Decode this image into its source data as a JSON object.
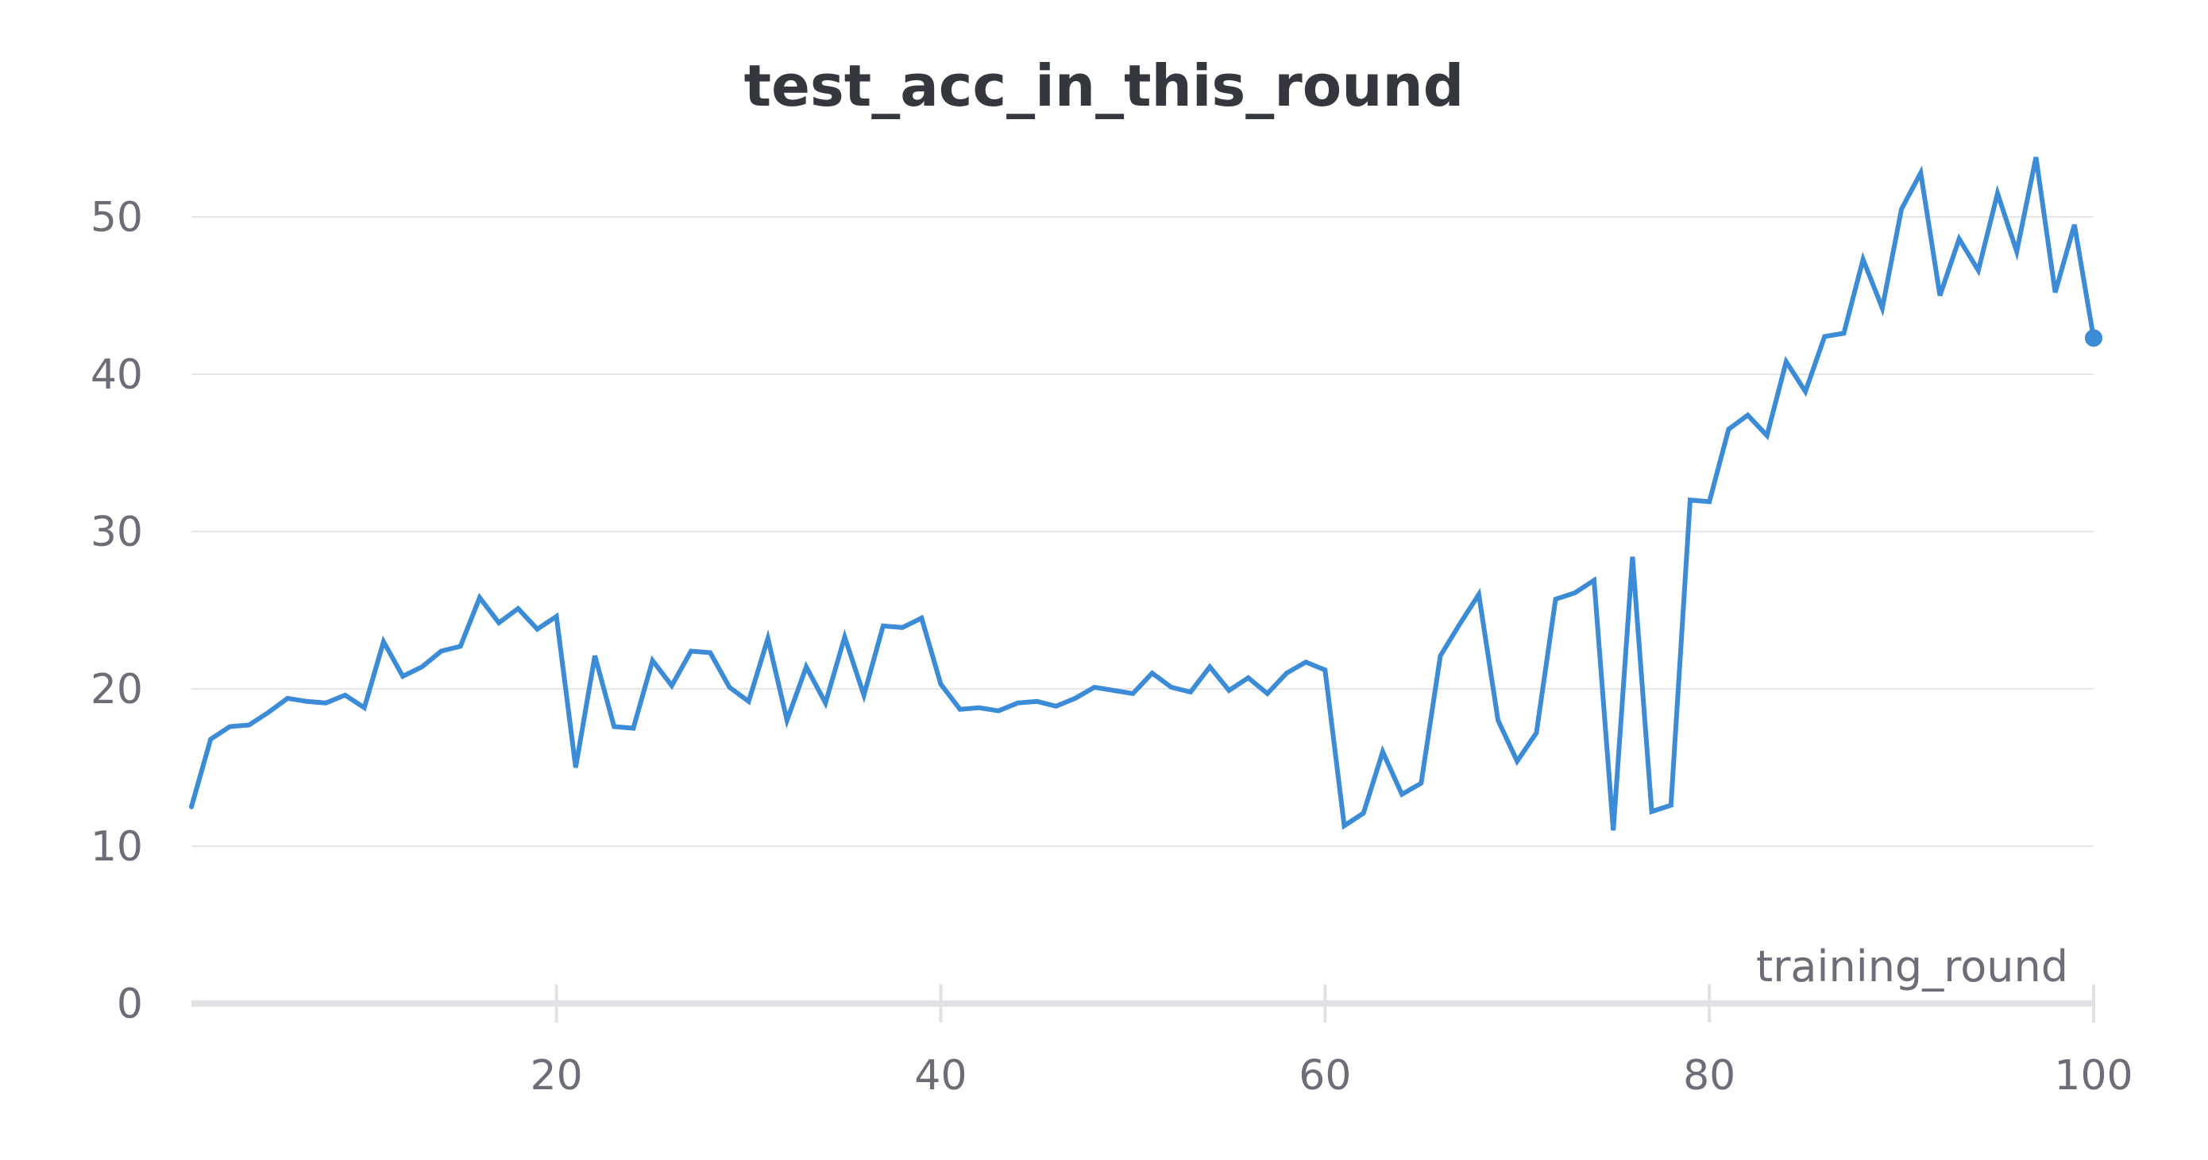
{
  "chart_data": {
    "type": "line",
    "title": "test_acc_in_this_round",
    "xlabel": "training_round",
    "ylabel": "",
    "xlim": [
      1,
      100
    ],
    "ylim": [
      0,
      55
    ],
    "xticks": [
      20,
      40,
      60,
      80,
      100
    ],
    "yticks": [
      0,
      10,
      20,
      30,
      40,
      50
    ],
    "grid": true,
    "legend": "none",
    "series": [
      {
        "color": "#3b8bd6",
        "x": [
          1,
          2,
          3,
          4,
          5,
          6,
          7,
          8,
          9,
          10,
          11,
          12,
          13,
          14,
          15,
          16,
          17,
          18,
          19,
          20,
          21,
          22,
          23,
          24,
          25,
          26,
          27,
          28,
          29,
          30,
          31,
          32,
          33,
          34,
          35,
          36,
          37,
          38,
          39,
          40,
          41,
          42,
          43,
          44,
          45,
          46,
          47,
          48,
          49,
          50,
          51,
          52,
          53,
          54,
          55,
          56,
          57,
          58,
          59,
          60,
          61,
          62,
          63,
          64,
          65,
          66,
          67,
          68,
          69,
          70,
          71,
          72,
          73,
          74,
          75,
          76,
          77,
          78,
          79,
          80,
          81,
          82,
          83,
          84,
          85,
          86,
          87,
          88,
          89,
          90,
          91,
          92,
          93,
          94,
          95,
          96,
          97,
          98,
          99,
          100
        ],
        "y": [
          12.5,
          16.8,
          17.6,
          17.7,
          18.5,
          19.4,
          19.2,
          19.1,
          19.6,
          18.8,
          23.0,
          20.8,
          21.4,
          22.4,
          22.7,
          25.8,
          24.2,
          25.1,
          23.8,
          24.6,
          15.0,
          22.1,
          17.6,
          17.5,
          21.8,
          20.2,
          22.4,
          22.3,
          20.1,
          19.2,
          23.2,
          18.0,
          21.4,
          19.1,
          23.3,
          19.6,
          24.0,
          23.9,
          24.5,
          20.3,
          18.7,
          18.8,
          18.6,
          19.1,
          19.2,
          18.9,
          19.4,
          20.1,
          19.9,
          19.7,
          21.0,
          20.1,
          19.8,
          21.4,
          19.9,
          20.7,
          19.7,
          21.0,
          21.7,
          21.2,
          11.3,
          12.1,
          16.0,
          13.3,
          14.0,
          22.1,
          24.1,
          26.0,
          18.0,
          15.4,
          17.2,
          25.7,
          26.1,
          26.9,
          11.0,
          28.4,
          12.2,
          12.6,
          32.0,
          31.9,
          36.5,
          37.4,
          36.1,
          40.8,
          38.9,
          42.4,
          42.6,
          47.3,
          44.2,
          50.5,
          52.8,
          45.0,
          48.6,
          46.6,
          51.5,
          47.8,
          53.8,
          45.2,
          49.5,
          42.3
        ]
      }
    ]
  }
}
